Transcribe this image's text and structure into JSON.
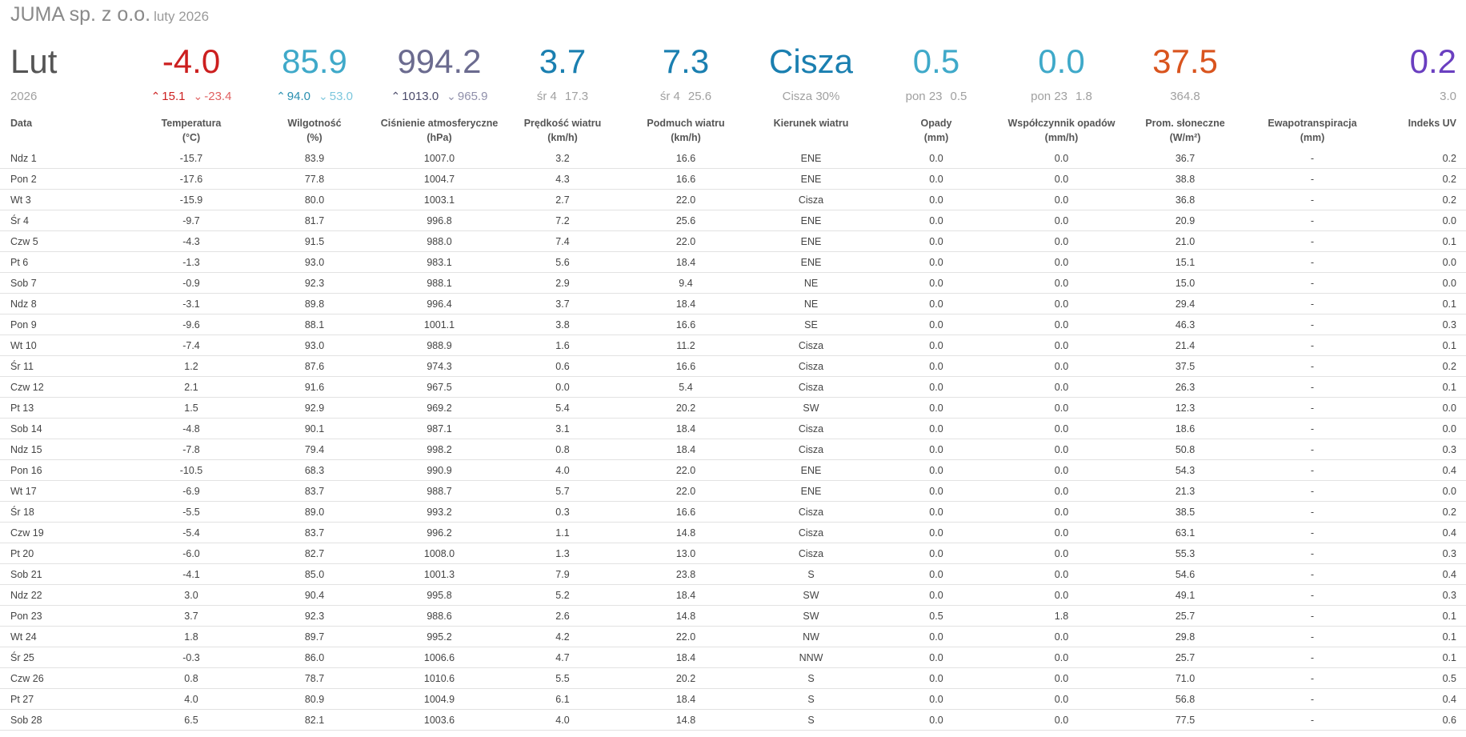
{
  "header": {
    "title": "JUMA sp. z o.o.",
    "subtitle": "luty 2026"
  },
  "summary": [
    {
      "big": "Lut",
      "small": "2026",
      "color": "#555555",
      "align": "left"
    },
    {
      "big": "-4.0",
      "up": "15.1",
      "down": "-23.4",
      "color": "#cc1f1f",
      "up_color": "#cc1f1f",
      "down_color": "#e06060"
    },
    {
      "big": "85.9",
      "up": "94.0",
      "down": "53.0",
      "color": "#3fa9c9",
      "up_color": "#2a8fb0",
      "down_color": "#7cc7dd"
    },
    {
      "big": "994.2",
      "up": "1013.0",
      "down": "965.9",
      "color": "#6b6b8f",
      "up_color": "#4a4a6a",
      "down_color": "#8f8faa"
    },
    {
      "big": "3.7",
      "small_a": "śr 4",
      "small_b": "17.3",
      "color": "#1a7fb0"
    },
    {
      "big": "7.3",
      "small_a": "śr 4",
      "small_b": "25.6",
      "color": "#1a7fb0"
    },
    {
      "big": "Cisza",
      "small": "Cisza 30%",
      "color": "#1a7fb0"
    },
    {
      "big": "0.5",
      "small_a": "pon 23",
      "small_b": "0.5",
      "color": "#3fa9c9"
    },
    {
      "big": "0.0",
      "small_a": "pon 23",
      "small_b": "1.8",
      "color": "#3fa9c9"
    },
    {
      "big": "37.5",
      "small": "364.8",
      "color": "#d9541e"
    },
    {
      "big": "",
      "small": "",
      "color": "#555555"
    },
    {
      "big": "0.2",
      "small": "3.0",
      "color": "#6a3fc0",
      "align": "right"
    }
  ],
  "columns": [
    {
      "name": "Data",
      "unit": ""
    },
    {
      "name": "Temperatura",
      "unit": "(°C)"
    },
    {
      "name": "Wilgotność",
      "unit": "(%)"
    },
    {
      "name": "Ciśnienie atmosferyczne",
      "unit": "(hPa)"
    },
    {
      "name": "Prędkość wiatru",
      "unit": "(km/h)"
    },
    {
      "name": "Podmuch wiatru",
      "unit": "(km/h)"
    },
    {
      "name": "Kierunek wiatru",
      "unit": ""
    },
    {
      "name": "Opady",
      "unit": "(mm)"
    },
    {
      "name": "Współczynnik opadów",
      "unit": "(mm/h)"
    },
    {
      "name": "Prom. słoneczne",
      "unit": "(W/m²)"
    },
    {
      "name": "Ewapotranspiracja",
      "unit": "(mm)"
    },
    {
      "name": "Indeks UV",
      "unit": ""
    }
  ],
  "rows": [
    [
      "Ndz 1",
      "-15.7",
      "83.9",
      "1007.0",
      "3.2",
      "16.6",
      "ENE",
      "0.0",
      "0.0",
      "36.7",
      "-",
      "0.2"
    ],
    [
      "Pon 2",
      "-17.6",
      "77.8",
      "1004.7",
      "4.3",
      "16.6",
      "ENE",
      "0.0",
      "0.0",
      "38.8",
      "-",
      "0.2"
    ],
    [
      "Wt 3",
      "-15.9",
      "80.0",
      "1003.1",
      "2.7",
      "22.0",
      "Cisza",
      "0.0",
      "0.0",
      "36.8",
      "-",
      "0.2"
    ],
    [
      "Śr 4",
      "-9.7",
      "81.7",
      "996.8",
      "7.2",
      "25.6",
      "ENE",
      "0.0",
      "0.0",
      "20.9",
      "-",
      "0.0"
    ],
    [
      "Czw 5",
      "-4.3",
      "91.5",
      "988.0",
      "7.4",
      "22.0",
      "ENE",
      "0.0",
      "0.0",
      "21.0",
      "-",
      "0.1"
    ],
    [
      "Pt 6",
      "-1.3",
      "93.0",
      "983.1",
      "5.6",
      "18.4",
      "ENE",
      "0.0",
      "0.0",
      "15.1",
      "-",
      "0.0"
    ],
    [
      "Sob 7",
      "-0.9",
      "92.3",
      "988.1",
      "2.9",
      "9.4",
      "NE",
      "0.0",
      "0.0",
      "15.0",
      "-",
      "0.0"
    ],
    [
      "Ndz 8",
      "-3.1",
      "89.8",
      "996.4",
      "3.7",
      "18.4",
      "NE",
      "0.0",
      "0.0",
      "29.4",
      "-",
      "0.1"
    ],
    [
      "Pon 9",
      "-9.6",
      "88.1",
      "1001.1",
      "3.8",
      "16.6",
      "SE",
      "0.0",
      "0.0",
      "46.3",
      "-",
      "0.3"
    ],
    [
      "Wt 10",
      "-7.4",
      "93.0",
      "988.9",
      "1.6",
      "11.2",
      "Cisza",
      "0.0",
      "0.0",
      "21.4",
      "-",
      "0.1"
    ],
    [
      "Śr 11",
      "1.2",
      "87.6",
      "974.3",
      "0.6",
      "16.6",
      "Cisza",
      "0.0",
      "0.0",
      "37.5",
      "-",
      "0.2"
    ],
    [
      "Czw 12",
      "2.1",
      "91.6",
      "967.5",
      "0.0",
      "5.4",
      "Cisza",
      "0.0",
      "0.0",
      "26.3",
      "-",
      "0.1"
    ],
    [
      "Pt 13",
      "1.5",
      "92.9",
      "969.2",
      "5.4",
      "20.2",
      "SW",
      "0.0",
      "0.0",
      "12.3",
      "-",
      "0.0"
    ],
    [
      "Sob 14",
      "-4.8",
      "90.1",
      "987.1",
      "3.1",
      "18.4",
      "Cisza",
      "0.0",
      "0.0",
      "18.6",
      "-",
      "0.0"
    ],
    [
      "Ndz 15",
      "-7.8",
      "79.4",
      "998.2",
      "0.8",
      "18.4",
      "Cisza",
      "0.0",
      "0.0",
      "50.8",
      "-",
      "0.3"
    ],
    [
      "Pon 16",
      "-10.5",
      "68.3",
      "990.9",
      "4.0",
      "22.0",
      "ENE",
      "0.0",
      "0.0",
      "54.3",
      "-",
      "0.4"
    ],
    [
      "Wt 17",
      "-6.9",
      "83.7",
      "988.7",
      "5.7",
      "22.0",
      "ENE",
      "0.0",
      "0.0",
      "21.3",
      "-",
      "0.0"
    ],
    [
      "Śr 18",
      "-5.5",
      "89.0",
      "993.2",
      "0.3",
      "16.6",
      "Cisza",
      "0.0",
      "0.0",
      "38.5",
      "-",
      "0.2"
    ],
    [
      "Czw 19",
      "-5.4",
      "83.7",
      "996.2",
      "1.1",
      "14.8",
      "Cisza",
      "0.0",
      "0.0",
      "63.1",
      "-",
      "0.4"
    ],
    [
      "Pt 20",
      "-6.0",
      "82.7",
      "1008.0",
      "1.3",
      "13.0",
      "Cisza",
      "0.0",
      "0.0",
      "55.3",
      "-",
      "0.3"
    ],
    [
      "Sob 21",
      "-4.1",
      "85.0",
      "1001.3",
      "7.9",
      "23.8",
      "S",
      "0.0",
      "0.0",
      "54.6",
      "-",
      "0.4"
    ],
    [
      "Ndz 22",
      "3.0",
      "90.4",
      "995.8",
      "5.2",
      "18.4",
      "SW",
      "0.0",
      "0.0",
      "49.1",
      "-",
      "0.3"
    ],
    [
      "Pon 23",
      "3.7",
      "92.3",
      "988.6",
      "2.6",
      "14.8",
      "SW",
      "0.5",
      "1.8",
      "25.7",
      "-",
      "0.1"
    ],
    [
      "Wt 24",
      "1.8",
      "89.7",
      "995.2",
      "4.2",
      "22.0",
      "NW",
      "0.0",
      "0.0",
      "29.8",
      "-",
      "0.1"
    ],
    [
      "Śr 25",
      "-0.3",
      "86.0",
      "1006.6",
      "4.7",
      "18.4",
      "NNW",
      "0.0",
      "0.0",
      "25.7",
      "-",
      "0.1"
    ],
    [
      "Czw 26",
      "0.8",
      "78.7",
      "1010.6",
      "5.5",
      "20.2",
      "S",
      "0.0",
      "0.0",
      "71.0",
      "-",
      "0.5"
    ],
    [
      "Pt 27",
      "4.0",
      "80.9",
      "1004.9",
      "6.1",
      "18.4",
      "S",
      "0.0",
      "0.0",
      "56.8",
      "-",
      "0.4"
    ],
    [
      "Sob 28",
      "6.5",
      "82.1",
      "1003.6",
      "4.0",
      "14.8",
      "S",
      "0.0",
      "0.0",
      "77.5",
      "-",
      "0.6"
    ]
  ]
}
